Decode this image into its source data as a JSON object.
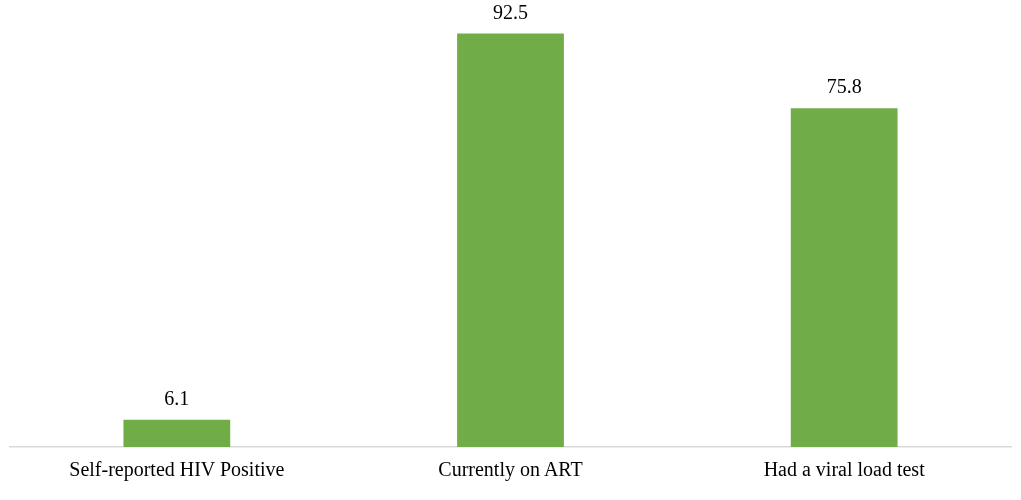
{
  "chart_data": {
    "type": "bar",
    "categories": [
      "Self-reported HIV Positive",
      "Currently on ART",
      "Had a viral load test"
    ],
    "values": [
      6.1,
      92.5,
      75.8
    ],
    "color": "#70ad47",
    "tick_labels": "x",
    "grid": false,
    "legend": false,
    "data_labels": true
  }
}
